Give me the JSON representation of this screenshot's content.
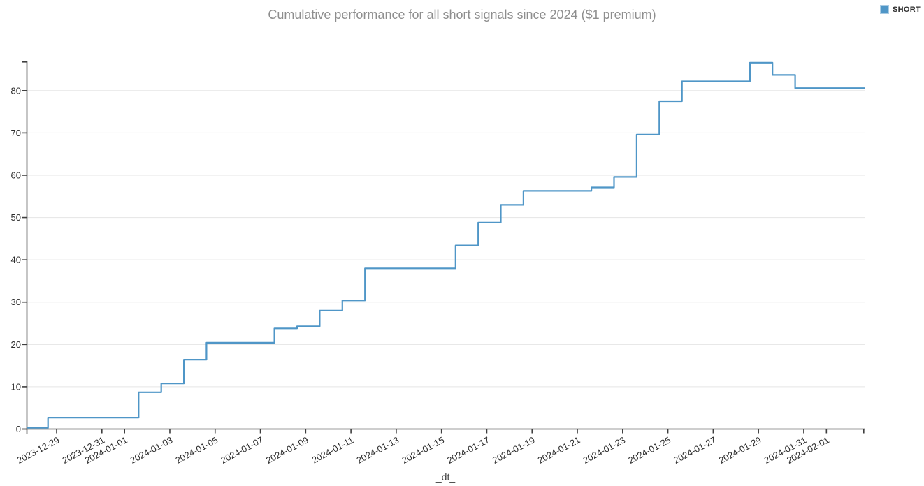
{
  "title": "Cumulative performance for all short signals since 2024 ($1 premium)",
  "legend": {
    "label": "SHORT",
    "swatch_color": "#4f96c7"
  },
  "chart_data": {
    "type": "line",
    "step": "hv",
    "title": "Cumulative performance for all short signals since 2024 ($1 premium)",
    "xlabel": "_dt_",
    "ylabel": "",
    "grid": "horizontal",
    "legend_position": "top-right-outside",
    "x_axis": {
      "start": "2023-12-27 16:30",
      "end": "2024-02-02 16:30",
      "tick_labels": [
        "2023-12-29",
        "2023-12-31",
        "2024-01-01",
        "2024-01-03",
        "2024-01-05",
        "2024-01-07",
        "2024-01-09",
        "2024-01-11",
        "2024-01-13",
        "2024-01-15",
        "2024-01-17",
        "2024-01-19",
        "2024-01-21",
        "2024-01-23",
        "2024-01-25",
        "2024-01-27",
        "2024-01-29",
        "2024-01-31",
        "2024-02-01"
      ]
    },
    "y_axis": {
      "min": 0,
      "max": 86.9,
      "ticks": [
        0,
        10,
        20,
        30,
        40,
        50,
        60,
        70,
        80
      ]
    },
    "series": [
      {
        "name": "SHORT",
        "color": "#4f96c7",
        "points": [
          [
            "2023-12-28",
            0.3
          ],
          [
            "2023-12-29",
            2.7
          ],
          [
            "2024-01-02",
            8.7
          ],
          [
            "2024-01-03",
            10.8
          ],
          [
            "2024-01-04",
            16.4
          ],
          [
            "2024-01-05",
            20.4
          ],
          [
            "2024-01-08",
            23.8
          ],
          [
            "2024-01-09",
            24.3
          ],
          [
            "2024-01-10",
            28.0
          ],
          [
            "2024-01-11",
            30.4
          ],
          [
            "2024-01-12",
            38.0
          ],
          [
            "2024-01-16",
            43.4
          ],
          [
            "2024-01-17",
            48.8
          ],
          [
            "2024-01-18",
            53.0
          ],
          [
            "2024-01-19",
            56.3
          ],
          [
            "2024-01-22",
            57.1
          ],
          [
            "2024-01-23",
            59.6
          ],
          [
            "2024-01-24",
            69.6
          ],
          [
            "2024-01-25",
            77.5
          ],
          [
            "2024-01-26",
            82.2
          ],
          [
            "2024-01-29",
            86.6
          ],
          [
            "2024-01-30",
            83.7
          ],
          [
            "2024-01-31",
            80.6
          ],
          [
            "2024-02-01",
            80.6
          ],
          [
            "2024-02-02",
            80.6
          ]
        ]
      }
    ],
    "colors": {
      "axis": "#3f3f3f",
      "grid": "#e5e5e5",
      "tick_label": "#2b2b2b",
      "title": "#8e8e8e"
    }
  }
}
